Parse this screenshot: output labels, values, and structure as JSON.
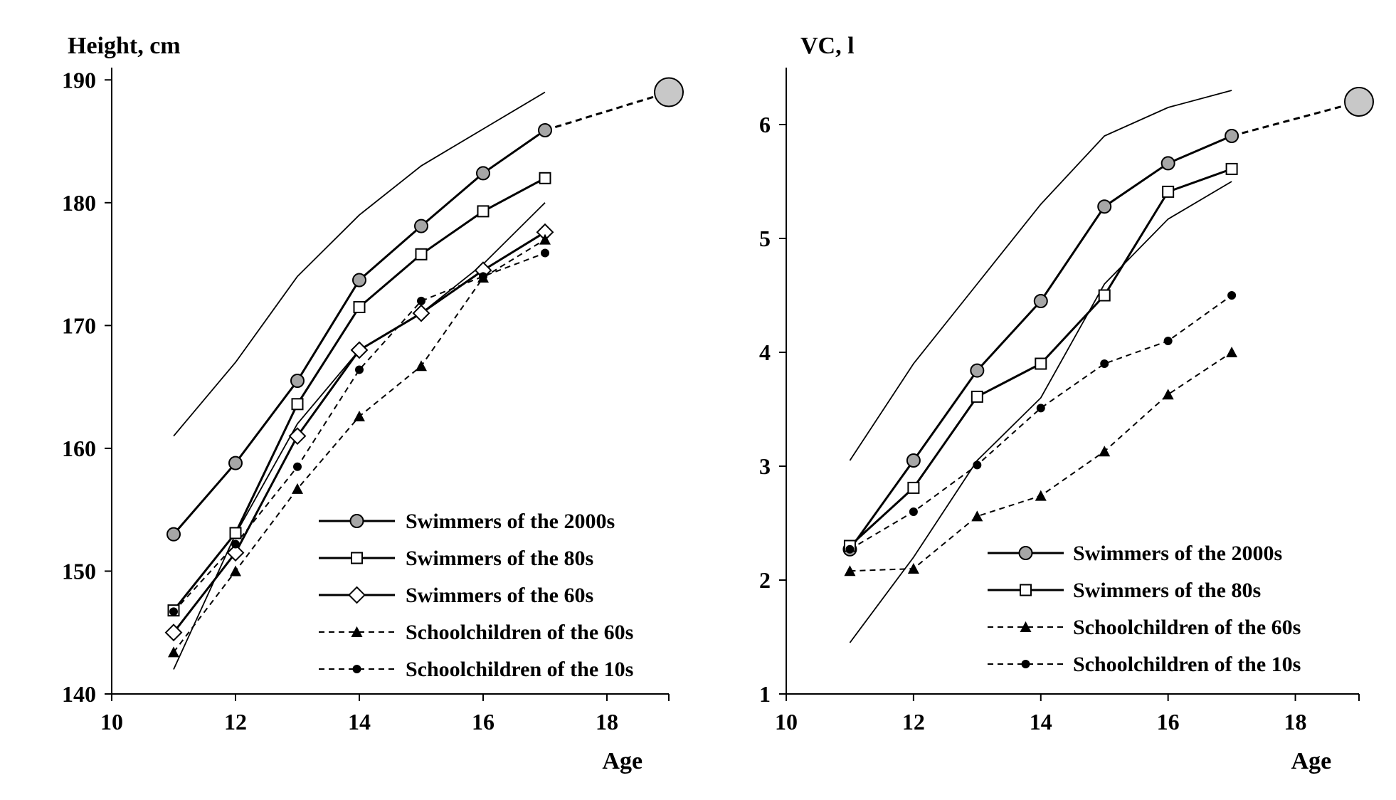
{
  "chart_data": [
    {
      "type": "line",
      "title": "",
      "ylabel": "Height, cm",
      "xlabel": "Age",
      "xlim": [
        10,
        19
      ],
      "ylim": [
        140,
        191
      ],
      "xticks": [
        10,
        12,
        14,
        16,
        18
      ],
      "yticks": [
        140,
        150,
        160,
        170,
        180,
        190
      ],
      "legend_position": "bottom-right",
      "series": [
        {
          "name": "Swimmers of the 2000s",
          "style": "solid",
          "marker": "circle-gray",
          "legend": true,
          "x": [
            11,
            12,
            13,
            14,
            15,
            16,
            17
          ],
          "y": [
            153,
            158.8,
            165.5,
            173.7,
            178.1,
            182.4,
            185.9
          ]
        },
        {
          "name": "Swimmers of the 80s",
          "style": "solid",
          "marker": "square-open",
          "legend": true,
          "x": [
            11,
            12,
            13,
            14,
            15,
            16,
            17
          ],
          "y": [
            146.8,
            153.1,
            163.6,
            171.5,
            175.8,
            179.3,
            182
          ]
        },
        {
          "name": "Swimmers of the 60s",
          "style": "solid",
          "marker": "diamond-open",
          "legend": true,
          "x": [
            11,
            12,
            13,
            14,
            15,
            16,
            17
          ],
          "y": [
            145,
            151.5,
            161,
            168,
            171,
            174.5,
            177.6
          ]
        },
        {
          "name": "Schoolchildren of the 60s",
          "style": "dashed",
          "marker": "triangle",
          "legend": true,
          "x": [
            11,
            12,
            13,
            14,
            15,
            16,
            17
          ],
          "y": [
            143.4,
            150,
            156.7,
            162.6,
            166.7,
            173.9,
            177
          ]
        },
        {
          "name": "Schoolchildren of the 10s",
          "style": "dashed",
          "marker": "dot",
          "legend": true,
          "x": [
            11,
            12,
            13,
            14,
            15,
            16,
            17
          ],
          "y": [
            146.7,
            152.2,
            158.5,
            166.4,
            172,
            174,
            175.9
          ]
        },
        {
          "name": "Upper bound",
          "style": "thin",
          "marker": "none",
          "legend": false,
          "x": [
            11,
            12,
            13,
            14,
            15,
            16,
            17
          ],
          "y": [
            161,
            167,
            174,
            179,
            183,
            186,
            189
          ]
        },
        {
          "name": "Lower bound",
          "style": "thin",
          "marker": "none",
          "legend": false,
          "x": [
            11,
            12,
            13,
            14,
            15,
            16,
            17
          ],
          "y": [
            142,
            153,
            162,
            168,
            171,
            175,
            180
          ]
        },
        {
          "name": "Projection",
          "style": "dashed-bold",
          "marker": "none",
          "legend": false,
          "x": [
            17,
            19
          ],
          "y": [
            185.9,
            189
          ]
        }
      ],
      "target_point": {
        "x": 19,
        "y": 189
      }
    },
    {
      "type": "line",
      "title": "",
      "ylabel": "VC, l",
      "xlabel": "Age",
      "xlim": [
        10,
        19
      ],
      "ylim": [
        1,
        6.5
      ],
      "xticks": [
        10,
        12,
        14,
        16,
        18
      ],
      "yticks": [
        1,
        2,
        3,
        4,
        5,
        6
      ],
      "legend_position": "bottom-right",
      "series": [
        {
          "name": "Swimmers of the 2000s",
          "style": "solid",
          "marker": "circle-gray",
          "legend": true,
          "x": [
            11,
            12,
            13,
            14,
            15,
            16,
            17
          ],
          "y": [
            2.27,
            3.05,
            3.84,
            4.45,
            5.28,
            5.66,
            5.9
          ]
        },
        {
          "name": "Swimmers of the 80s",
          "style": "solid",
          "marker": "square-open",
          "legend": true,
          "x": [
            11,
            12,
            13,
            14,
            15,
            16,
            17
          ],
          "y": [
            2.3,
            2.81,
            3.61,
            3.9,
            4.5,
            5.41,
            5.61
          ]
        },
        {
          "name": "Schoolchildren of the 60s",
          "style": "dashed",
          "marker": "triangle",
          "legend": true,
          "x": [
            11,
            12,
            13,
            14,
            15,
            16,
            17
          ],
          "y": [
            2.08,
            2.1,
            2.56,
            2.74,
            3.13,
            3.63,
            4
          ]
        },
        {
          "name": "Schoolchildren of the 10s",
          "style": "dashed",
          "marker": "dot",
          "legend": true,
          "x": [
            11,
            12,
            13,
            14,
            15,
            16,
            17
          ],
          "y": [
            2.27,
            2.6,
            3.01,
            3.51,
            3.9,
            4.1,
            4.5
          ]
        },
        {
          "name": "Upper bound",
          "style": "thin",
          "marker": "none",
          "legend": false,
          "x": [
            11,
            12,
            13,
            14,
            15,
            16,
            17
          ],
          "y": [
            3.05,
            3.9,
            4.6,
            5.3,
            5.9,
            6.15,
            6.3
          ]
        },
        {
          "name": "Lower bound",
          "style": "thin",
          "marker": "none",
          "legend": false,
          "x": [
            11,
            12,
            13,
            14,
            15,
            16,
            17
          ],
          "y": [
            1.45,
            2.2,
            3.05,
            3.6,
            4.6,
            5.17,
            5.5
          ]
        },
        {
          "name": "Projection",
          "style": "dashed-bold",
          "marker": "none",
          "legend": false,
          "x": [
            17,
            19
          ],
          "y": [
            5.9,
            6.2
          ]
        }
      ],
      "target_point": {
        "x": 19,
        "y": 6.2
      }
    }
  ]
}
